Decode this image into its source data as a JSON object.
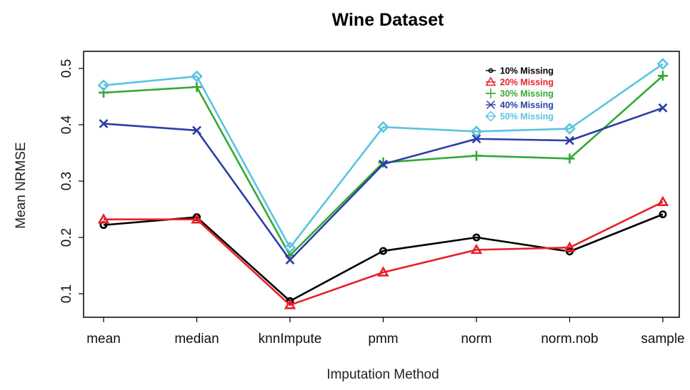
{
  "chart_data": {
    "type": "line",
    "title": "Wine Dataset",
    "xlabel": "Imputation Method",
    "ylabel": "Mean NRMSE",
    "categories": [
      "mean",
      "median",
      "knnImpute",
      "pmm",
      "norm",
      "norm.nob",
      "sample"
    ],
    "ylim": [
      0.075,
      0.515
    ],
    "yticks": [
      "0.1",
      "0.2",
      "0.3",
      "0.4",
      "0.5"
    ],
    "legend_position": "top-right",
    "grid": false,
    "series": [
      {
        "name": "10% Missing",
        "color": "#000000",
        "marker": "circle",
        "values": [
          0.222,
          0.236,
          0.087,
          0.176,
          0.2,
          0.175,
          0.241
        ]
      },
      {
        "name": "20% Missing",
        "color": "#e8202a",
        "marker": "triangle",
        "values": [
          0.232,
          0.232,
          0.08,
          0.138,
          0.178,
          0.182,
          0.263
        ]
      },
      {
        "name": "30% Missing",
        "color": "#35a836",
        "marker": "plus",
        "values": [
          0.457,
          0.467,
          0.168,
          0.333,
          0.345,
          0.34,
          0.487
        ]
      },
      {
        "name": "40% Missing",
        "color": "#2b3ea8",
        "marker": "cross",
        "values": [
          0.402,
          0.39,
          0.16,
          0.33,
          0.375,
          0.372,
          0.43
        ]
      },
      {
        "name": "50% Missing",
        "color": "#5cc3df",
        "marker": "diamond",
        "values": [
          0.47,
          0.486,
          0.182,
          0.396,
          0.388,
          0.393,
          0.508
        ]
      }
    ]
  }
}
